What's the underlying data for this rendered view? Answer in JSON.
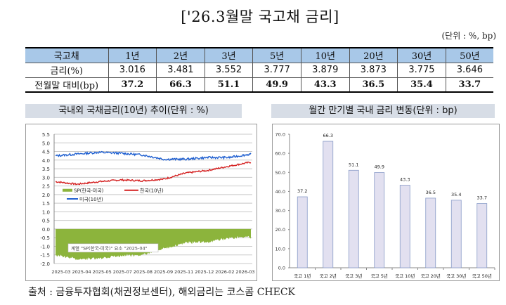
{
  "header": {
    "title": "['26.3월말 국고채 금리]",
    "unit": "(단위 : %, bp)"
  },
  "table": {
    "columns": [
      "국고채",
      "1년",
      "2년",
      "3년",
      "5년",
      "10년",
      "20년",
      "30년",
      "50년"
    ],
    "rows": [
      {
        "label": "금리(%)",
        "values": [
          "3.016",
          "3.481",
          "3.552",
          "3.777",
          "3.879",
          "3.873",
          "3.775",
          "3.646"
        ]
      },
      {
        "label": "전월말 대비(bp)",
        "values": [
          "37.2",
          "66.3",
          "51.1",
          "49.9",
          "43.3",
          "36.5",
          "35.4",
          "33.7"
        ]
      }
    ],
    "header_color": "#a8c8e8"
  },
  "left_panel": {
    "title": "국내외 국채금리(10년) 추이(단위 : %)",
    "tooltip": "계열 \"SP(한국-미국)\" 요소 \"2025-04\""
  },
  "right_panel": {
    "title": "월간 만기별 국내 금리 변동(단위 : bp)"
  },
  "footer": {
    "source": "출처 : 금융투자협회(채권정보센터), 해외금리는 코스콤 CHECK"
  },
  "chart_data": [
    {
      "type": "line",
      "title": "국내외 국채금리(10년) 추이(단위 : %)",
      "xlabel": "",
      "ylabel": "",
      "ylim": [
        -2.0,
        5.5
      ],
      "yticks": [
        "5.5",
        "5.0",
        "4.5",
        "4.0",
        "3.5",
        "3.0",
        "2.5",
        "2.0",
        "1.5",
        "1.0",
        "0.5",
        "0.0",
        "-0.5",
        "-1.0",
        "-1.5",
        "-2.0"
      ],
      "x": [
        "2025-03",
        "2025-04",
        "2025-05",
        "2025-07",
        "2025-08",
        "2025-09",
        "2025-11",
        "2025-12",
        "2026-02",
        "2026-03"
      ],
      "grid": true,
      "legend_position": "inside-left-middle",
      "series": [
        {
          "name": "SP(한국-미국)",
          "kind": "area",
          "color": "#8cb43c",
          "values": [
            -1.5,
            -1.7,
            -1.75,
            -1.55,
            -1.45,
            -1.25,
            -0.9,
            -0.75,
            -0.55,
            -0.5
          ]
        },
        {
          "name": "한국(10년)",
          "kind": "line",
          "color": "#d42020",
          "values": [
            2.75,
            2.6,
            2.75,
            2.85,
            2.8,
            2.9,
            3.25,
            3.4,
            3.65,
            3.88
          ]
        },
        {
          "name": "미국(10년)",
          "kind": "line",
          "color": "#1f5fd0",
          "values": [
            4.25,
            4.35,
            4.45,
            4.4,
            4.3,
            4.05,
            4.05,
            4.15,
            4.15,
            4.35
          ]
        }
      ]
    },
    {
      "type": "bar",
      "title": "월간 만기별 국내 금리 변동(단위 : bp)",
      "categories": [
        "국고 1년",
        "국고 2년",
        "국고 3년",
        "국고 5년",
        "국고 10년",
        "국고 20년",
        "국고 30년",
        "국고 50년"
      ],
      "values": [
        37.2,
        66.3,
        51.1,
        49.9,
        43.3,
        36.5,
        35.4,
        33.7
      ],
      "labels": [
        "37.2",
        "66.3",
        "51.1",
        "49.9",
        "43.3",
        "36.5",
        "35.4",
        "33.7"
      ],
      "xlabel": "",
      "ylabel": "",
      "ylim": [
        0,
        70
      ],
      "yticks": [
        "70.0",
        "60.0",
        "50.0",
        "40.0",
        "30.0",
        "20.0",
        "10.0",
        "0.0"
      ],
      "grid": false,
      "bar_color": "#e2e0f0",
      "bar_edge": "#8a9cc8"
    }
  ]
}
